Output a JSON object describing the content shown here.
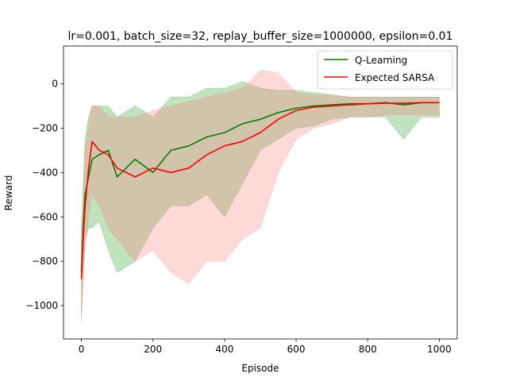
{
  "chart_data": {
    "type": "line",
    "title": "lr=0.001, batch_size=32, replay_buffer_size=1000000, epsilon=0.01",
    "xlabel": "Episode",
    "ylabel": "Reward",
    "xlim": [
      -50,
      1050
    ],
    "ylim": [
      -1150,
      170
    ],
    "x_ticks": [
      0,
      200,
      400,
      600,
      800,
      1000
    ],
    "y_ticks": [
      -1000,
      -800,
      -600,
      -400,
      -200,
      0
    ],
    "grid": false,
    "legend_position": "top-right",
    "x": [
      0,
      5,
      10,
      20,
      30,
      50,
      75,
      100,
      150,
      200,
      250,
      300,
      350,
      400,
      450,
      500,
      550,
      600,
      650,
      700,
      750,
      800,
      850,
      900,
      950,
      1000
    ],
    "series": [
      {
        "name": "Q-Learning",
        "color": "#008000",
        "band_color": "#2ca02c",
        "values": [
          -850,
          -650,
          -500,
          -420,
          -340,
          -320,
          -300,
          -420,
          -340,
          -400,
          -300,
          -280,
          -240,
          -220,
          -180,
          -160,
          -130,
          -110,
          -100,
          -95,
          -90,
          -90,
          -85,
          -95,
          -85,
          -85
        ],
        "band_low": [
          -1050,
          -850,
          -700,
          -650,
          -650,
          -620,
          -750,
          -850,
          -800,
          -650,
          -550,
          -550,
          -500,
          -600,
          -450,
          -300,
          -250,
          -200,
          -190,
          -160,
          -150,
          -150,
          -150,
          -250,
          -150,
          -150
        ],
        "band_high": [
          -650,
          -450,
          -250,
          -150,
          -100,
          -100,
          -100,
          -150,
          -100,
          -150,
          -60,
          -60,
          -20,
          -20,
          10,
          -20,
          -30,
          -30,
          -40,
          -50,
          -60,
          -60,
          -60,
          -60,
          -60,
          -60
        ]
      },
      {
        "name": "Expected SARSA",
        "color": "#ff0000",
        "band_color": "#ff7f7f",
        "values": [
          -880,
          -700,
          -560,
          -380,
          -260,
          -300,
          -320,
          -380,
          -420,
          -380,
          -400,
          -380,
          -320,
          -280,
          -260,
          -220,
          -160,
          -120,
          -105,
          -100,
          -95,
          -90,
          -88,
          -88,
          -85,
          -85
        ],
        "band_low": [
          -1080,
          -900,
          -750,
          -600,
          -500,
          -550,
          -650,
          -700,
          -800,
          -750,
          -850,
          -900,
          -800,
          -800,
          -700,
          -650,
          -400,
          -250,
          -200,
          -180,
          -150,
          -150,
          -140,
          -140,
          -140,
          -140
        ],
        "band_high": [
          -700,
          -500,
          -300,
          -200,
          -100,
          -100,
          -150,
          -150,
          -150,
          -120,
          -100,
          -80,
          -60,
          -40,
          -20,
          60,
          50,
          -40,
          -50,
          -50,
          -60,
          -60,
          -60,
          -60,
          -60,
          -60
        ]
      }
    ]
  }
}
